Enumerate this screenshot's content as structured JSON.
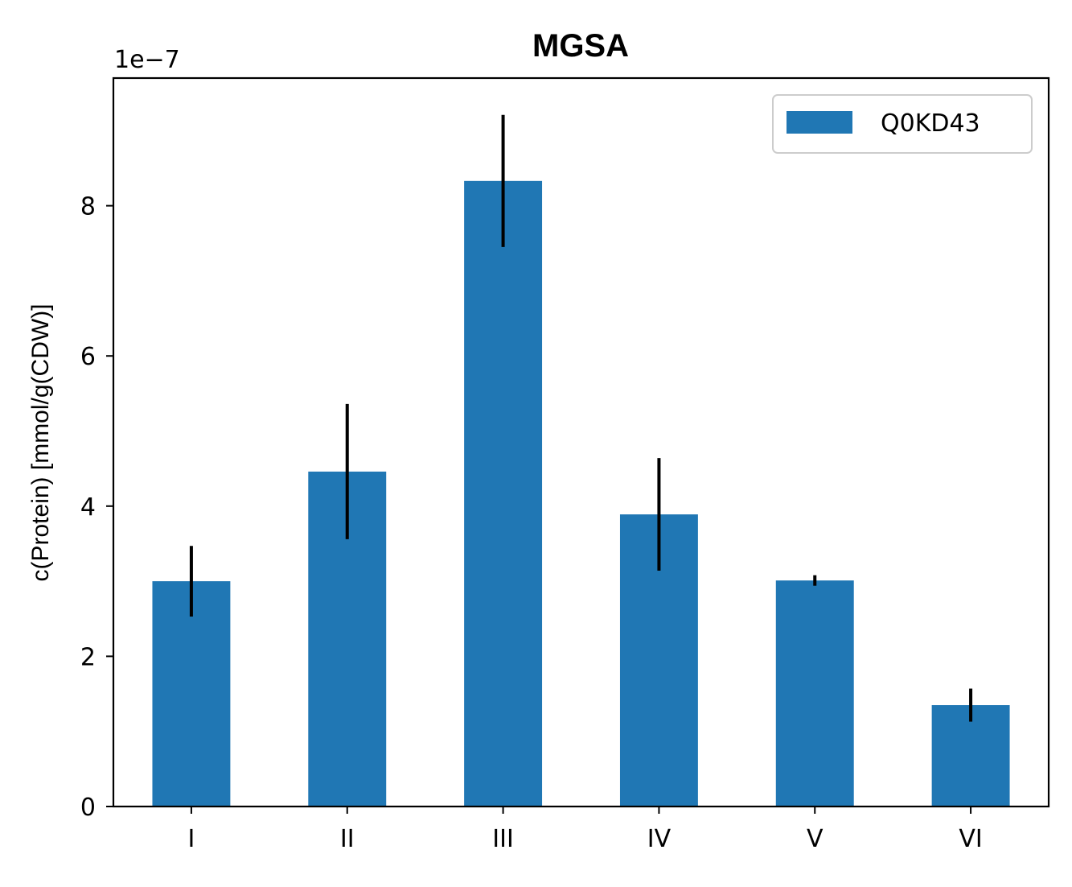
{
  "chart_data": {
    "type": "bar",
    "title": "MGSA",
    "xlabel": "",
    "ylabel": "c(Protein) [mmol/g(CDW)]",
    "y_offset_label": "1e−7",
    "categories": [
      "I",
      "II",
      "III",
      "IV",
      "V",
      "VI"
    ],
    "series": [
      {
        "name": "Q0KD43",
        "color": "#2077b4",
        "values": [
          3e-07,
          4.46e-07,
          8.33e-07,
          3.89e-07,
          3.01e-07,
          1.35e-07
        ],
        "error": [
          4.7e-08,
          9e-08,
          8.8e-08,
          7.5e-08,
          7e-09,
          2.2e-08
        ]
      }
    ],
    "ylim": [
      0,
      9.7e-07
    ],
    "yticks": [
      0,
      2e-07,
      4e-07,
      6e-07,
      8e-07
    ],
    "ytick_labels": [
      "0",
      "2",
      "4",
      "6",
      "8"
    ],
    "grid": false,
    "legend_position": "upper-right",
    "error_bar_color": "#000000"
  }
}
